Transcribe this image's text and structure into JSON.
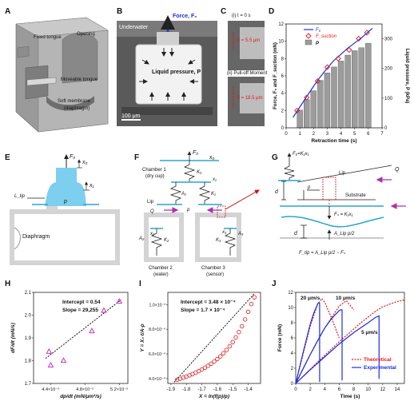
{
  "figure": {
    "panels": {
      "a": "A",
      "b": "B",
      "c": "C",
      "d": "D",
      "e": "E",
      "f": "F",
      "g": "G",
      "h": "H",
      "i": "I",
      "j": "J"
    }
  },
  "panel_a": {
    "fixed_tongue": "Fixed tongue",
    "opening": "Opening",
    "moveable_tongue": "Moveable tongue",
    "soft_membrane": "Soft membrane",
    "diaphragm": "(diaphragm)"
  },
  "panel_b": {
    "underwater": "Underwater",
    "force": "Force, F₀",
    "liquid_pressure": "Liquid pressure, P",
    "scale": "100 μm"
  },
  "panel_c": {
    "top_title": "(i) t = 0 s",
    "top_s": "S = 5.5 μm",
    "bottom_title": "(ii) Pull-off Moment",
    "bottom_s": "S = 18.5 μm"
  },
  "panel_e": {
    "f0": "F₀",
    "x0": "x₀",
    "x1": "x₁",
    "ltip": "L_tip",
    "p": "p",
    "diaphragm": "Diaphragm"
  },
  "panel_f": {
    "f0": "F₀",
    "x0": "x₀",
    "x1": "x₁",
    "k0": "K₀",
    "k1": "K₁",
    "k2": "K₂",
    "k3": "K₃",
    "a1": "A₁",
    "a2": "A₂",
    "a3": "A₃",
    "x2": "x₂",
    "x3": "x₃",
    "chamber1a": "Chamber 1",
    "chamber1b": "(dry cup)",
    "chamber2a": "Chamber 2",
    "chamber2b": "(water)",
    "chamber3a": "Chamber 3",
    "chamber3b": "(sensor)",
    "lip": "Lip",
    "q": "Q",
    "p": "p"
  },
  "panel_g": {
    "eq_top": "F₀=K₁x₁",
    "lip": "Lip",
    "q": "Q",
    "substrate": "Substrate",
    "d": "d",
    "p": "p",
    "fs": "Fₛ = K₁x₁",
    "alip": "A_Lip p/2",
    "d2": "d",
    "ftip": "F_tip = A_Lip p/2 − Fₛ"
  },
  "chart_data": [
    {
      "panel": "D",
      "type": "bar+line",
      "xlabel": "Retraction time (s)",
      "ylabel_left": "Force, F₀ and F_suction (mN)",
      "ylabel_right": "Liquid pressure, P (kPa)",
      "xlim": [
        0,
        7
      ],
      "ylim_left": [
        0,
        12
      ],
      "ylim_right": [
        0,
        350
      ],
      "xticks": [
        0,
        1,
        2,
        3,
        4,
        5,
        6,
        7
      ],
      "yticks_left": [
        0,
        2,
        4,
        6,
        8,
        10,
        12
      ],
      "yticks_right": [
        0,
        100,
        200,
        300
      ],
      "legend": [
        "F₀",
        "F_suction",
        "P"
      ],
      "bars_P": {
        "x": [
          1,
          1.5,
          2,
          2.5,
          3,
          3.5,
          4,
          4.5,
          5,
          5.5,
          6
        ],
        "values": [
          60,
          95,
          125,
          160,
          185,
          205,
          225,
          245,
          260,
          270,
          285
        ]
      },
      "series_Fsuction": {
        "x": [
          0.8,
          1.5,
          2.3,
          3.0,
          3.8,
          4.6,
          5.3,
          5.9
        ],
        "values": [
          2.0,
          3.5,
          5.4,
          7.0,
          8.0,
          9.0,
          10.3,
          11.0
        ]
      },
      "series_F0": {
        "x": [
          0.5,
          1.0,
          1.5,
          2.0,
          2.5,
          3.0,
          3.5,
          4.0,
          4.5,
          5.0,
          5.5,
          6.0,
          6.3
        ],
        "values": [
          1.2,
          2.4,
          3.6,
          4.8,
          5.9,
          6.9,
          7.8,
          8.5,
          9.2,
          9.8,
          10.4,
          11.1,
          11.5
        ]
      }
    },
    {
      "panel": "H",
      "type": "scatter",
      "xlabel": "dp/dt (mN/μm²/s)",
      "ylabel": "dF/dt (mN/s)",
      "xlim": [
        4.2e-05,
        5.3e-05
      ],
      "ylim": [
        1.7,
        2.1
      ],
      "xticks": [
        "4.4×10⁻⁵",
        "4.8×10⁻⁵",
        "5.2×10⁻⁵"
      ],
      "yticks": [
        1.7,
        1.8,
        1.9,
        2.0,
        2.1
      ],
      "annotation_intercept": "Intercept = 0.54",
      "annotation_slope": "Slope = 29,255",
      "x": [
        4.38e-05,
        4.4e-05,
        4.55e-05,
        4.88e-05,
        5.02e-05,
        5.2e-05
      ],
      "y": [
        1.84,
        1.78,
        1.8,
        1.93,
        2.02,
        2.06
      ],
      "fit": {
        "intercept": 0.54,
        "slope": 29255
      }
    },
    {
      "panel": "I",
      "type": "scatter",
      "xlabel": "X = ln(f(p)/p)",
      "ylabel": "Y = X₀ t/A-p",
      "xlim": [
        -1.92,
        -1.32
      ],
      "ylim": [
        0.00036,
        0.0011
      ],
      "xticks": [
        -1.9,
        -1.8,
        -1.7,
        -1.6,
        -1.5,
        -1.4
      ],
      "xtick_labels": [
        "-1.9",
        "-1.8",
        "-1.7",
        "-1.6",
        "-1.5",
        "-1.4"
      ],
      "yticks": [
        0.0004,
        0.0006,
        0.0008,
        0.001
      ],
      "ytick_labels": [
        "4.0×10⁻⁴",
        "6.0×10⁻⁴",
        "8.0×10⁻⁴",
        "1.0×10⁻³"
      ],
      "annotation_intercept": "Intercept = 3.48 × 10⁻⁴",
      "annotation_slope": "Slope = 1.7 × 10⁻⁴",
      "x": [
        -1.86,
        -1.84,
        -1.82,
        -1.8,
        -1.78,
        -1.76,
        -1.74,
        -1.72,
        -1.7,
        -1.68,
        -1.66,
        -1.64,
        -1.62,
        -1.6,
        -1.58,
        -1.56,
        -1.54,
        -1.52,
        -1.5,
        -1.48,
        -1.46,
        -1.44,
        -1.42,
        -1.4,
        -1.38,
        -1.36
      ],
      "y": [
        0.00039,
        0.000398,
        0.000407,
        0.000416,
        0.000426,
        0.000436,
        0.000448,
        0.00046,
        0.000473,
        0.000488,
        0.000503,
        0.00052,
        0.000538,
        0.000558,
        0.00058,
        0.000605,
        0.000632,
        0.000662,
        0.000696,
        0.000734,
        0.000777,
        0.000825,
        0.00088,
        0.000942,
        0.001005,
        0.00106
      ],
      "fit": {
        "intercept": 0.000348,
        "slope": 0.00017
      }
    },
    {
      "panel": "J",
      "type": "line",
      "xlabel": "Time (s)",
      "ylabel": "Force (mN)",
      "xlim": [
        0,
        15
      ],
      "ylim": [
        0,
        12
      ],
      "xticks": [
        0,
        2,
        4,
        6,
        8,
        10,
        12,
        14
      ],
      "yticks": [
        0,
        2,
        4,
        6,
        8,
        10,
        12
      ],
      "legend": [
        "Theoretical",
        "Experimental"
      ],
      "annotations": [
        "20 μm/s",
        "10 μm/s",
        "5 μm/s"
      ],
      "series": [
        {
          "name": "Theoretical",
          "x": [
            0,
            1,
            2,
            3,
            3.6,
            4,
            5,
            6
          ],
          "values": [
            0,
            3.8,
            7.5,
            10.4,
            11.2,
            10.7,
            8.5,
            6.0
          ]
        },
        {
          "name": "Theoretical",
          "x": [
            0,
            2,
            4,
            6,
            7,
            8
          ],
          "values": [
            0,
            3.8,
            7.3,
            10.2,
            10.9,
            9.7
          ]
        },
        {
          "name": "Theoretical",
          "x": [
            0,
            3,
            6,
            9,
            11,
            12,
            14,
            15
          ],
          "values": [
            0,
            2.8,
            5.5,
            8.0,
            9.5,
            10.1,
            10.8,
            11.0
          ]
        },
        {
          "name": "Experimental",
          "x": [
            0,
            0.5,
            1,
            1.5,
            2,
            2.5,
            3,
            3.1,
            3.3,
            3.3
          ],
          "values": [
            0,
            2.0,
            4.0,
            5.9,
            7.8,
            9.3,
            10.4,
            10.6,
            10.6,
            0.2
          ]
        },
        {
          "name": "Experimental",
          "x": [
            0,
            1,
            2,
            3,
            4,
            5,
            6,
            6.2,
            6.4,
            6.4
          ],
          "values": [
            0,
            1.9,
            3.8,
            5.6,
            7.3,
            8.6,
            9.6,
            9.7,
            9.7,
            0.4
          ]
        },
        {
          "name": "Experimental",
          "x": [
            0,
            2,
            4,
            6,
            8,
            10,
            11,
            11.5,
            11.5
          ],
          "values": [
            0,
            1.8,
            3.5,
            5.2,
            6.7,
            8.0,
            8.7,
            8.9,
            0.6
          ]
        }
      ]
    }
  ]
}
